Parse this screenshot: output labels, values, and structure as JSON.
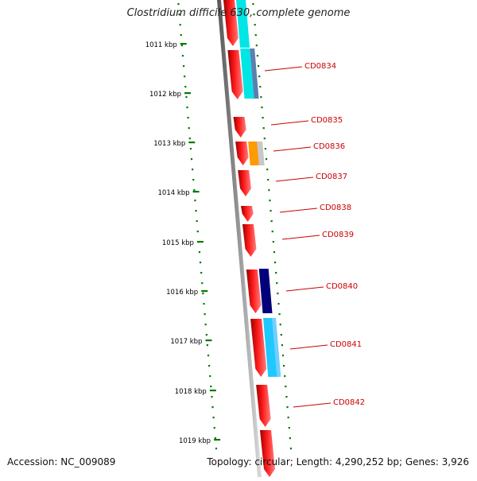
{
  "genome": {
    "title": "Clostridium difficile 630, complete genome",
    "accession": "Accession: NC_009089",
    "summary": "Topology: circular; Length: 4,290,252 bp; Genes: 3,926"
  },
  "scale": {
    "unit": "kbp",
    "ticks": [
      {
        "label": "1011 kbp"
      },
      {
        "label": "1012 kbp"
      },
      {
        "label": "1013 kbp"
      },
      {
        "label": "1014 kbp"
      },
      {
        "label": "1015 kbp"
      },
      {
        "label": "1016 kbp"
      },
      {
        "label": "1017 kbp"
      },
      {
        "label": "1018 kbp"
      },
      {
        "label": "1019 kbp"
      }
    ]
  },
  "genes": [
    {
      "label": "CD0834"
    },
    {
      "label": "CD0835"
    },
    {
      "label": "CD0836"
    },
    {
      "label": "CD0837"
    },
    {
      "label": "CD0838"
    },
    {
      "label": "CD0839"
    },
    {
      "label": "CD0840"
    },
    {
      "label": "CD0841"
    },
    {
      "label": "CD0842"
    }
  ],
  "colors": {
    "gene_red": "#ff0000",
    "cyan": "#00e5e5",
    "steel_blue": "#5c7fb0",
    "orange": "#ff9a00",
    "light_gray": "#c8c8c8",
    "navy": "#00007a",
    "sky_blue": "#1fc8ff",
    "tick_green": "#007a00",
    "label_red": "#cc0000",
    "backbone_gray": "#8c8c8c"
  }
}
